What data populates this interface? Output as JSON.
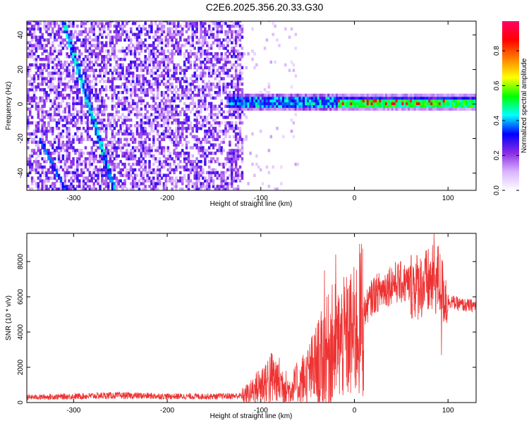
{
  "chart_data": [
    {
      "type": "heatmap",
      "title": "C2E6.2025.356.20.33.G30",
      "xlabel": "Height of straight line (km)",
      "ylabel": "Frequency (Hz)",
      "xlim": [
        -350,
        130
      ],
      "ylim": [
        -50,
        48
      ],
      "xticks": [
        -300,
        -200,
        -100,
        0,
        100
      ],
      "yticks": [
        -40,
        -20,
        0,
        20,
        40
      ],
      "colorbar": {
        "label": "Normalized spectral amplitude",
        "range": [
          0.0,
          0.97
        ],
        "ticks": [
          "0.0",
          "0.2",
          "0.4",
          "0.6",
          "0.8"
        ],
        "tick_values": [
          0.0,
          0.2,
          0.4,
          0.6,
          0.8
        ],
        "colors": [
          "#ffffff",
          "#d9b3ff",
          "#8a2be2",
          "#0000ff",
          "#00ffff",
          "#00ff00",
          "#ffff00",
          "#ff8000",
          "#ff0000",
          "#ff0066"
        ]
      },
      "features": {
        "noise_region_x": [
          -350,
          -120
        ],
        "diagonal_trace_1": {
          "x": [
            -312,
            -258
          ],
          "y": [
            48,
            -50
          ]
        },
        "diagonal_trace_2": {
          "x": [
            -338,
            -310
          ],
          "y": [
            -20,
            -50
          ]
        },
        "signal_band_x": [
          -135,
          130
        ],
        "signal_band_y": [
          -5,
          5
        ],
        "strong_signal_x": [
          -20,
          100
        ]
      }
    },
    {
      "type": "line",
      "xlabel": "Height of straight line (km)",
      "ylabel": "SNR (10 * v/v)",
      "xlim": [
        -350,
        130
      ],
      "ylim": [
        0,
        9600
      ],
      "xticks": [
        -300,
        -200,
        -100,
        0,
        100
      ],
      "yticks": [
        0,
        2000,
        4000,
        6000,
        8000
      ],
      "color": "#ee3333",
      "series": [
        {
          "name": "SNR",
          "x": [
            -350,
            -300,
            -260,
            -220,
            -200,
            -150,
            -120,
            -110,
            -100,
            -90,
            -80,
            -70,
            -60,
            -50,
            -40,
            -30,
            -20,
            -10,
            0,
            10,
            20,
            30,
            40,
            50,
            60,
            70,
            80,
            90,
            95,
            100,
            110,
            120,
            130
          ],
          "values": [
            300,
            350,
            400,
            380,
            350,
            350,
            380,
            600,
            1000,
            1400,
            1200,
            700,
            1100,
            1500,
            2100,
            2700,
            3300,
            3600,
            3900,
            5100,
            6100,
            6400,
            6800,
            6800,
            6700,
            6600,
            6800,
            7000,
            6200,
            5800,
            5600,
            5500,
            5500
          ],
          "spikes": [
            {
              "x": -32,
              "y": 7500
            },
            {
              "x": -20,
              "y": 8400
            },
            {
              "x": 0,
              "y": 4800
            },
            {
              "x": 70,
              "y": 7700
            },
            {
              "x": 85,
              "y": 9600
            },
            {
              "x": 93,
              "y": 2700
            }
          ]
        }
      ]
    }
  ]
}
